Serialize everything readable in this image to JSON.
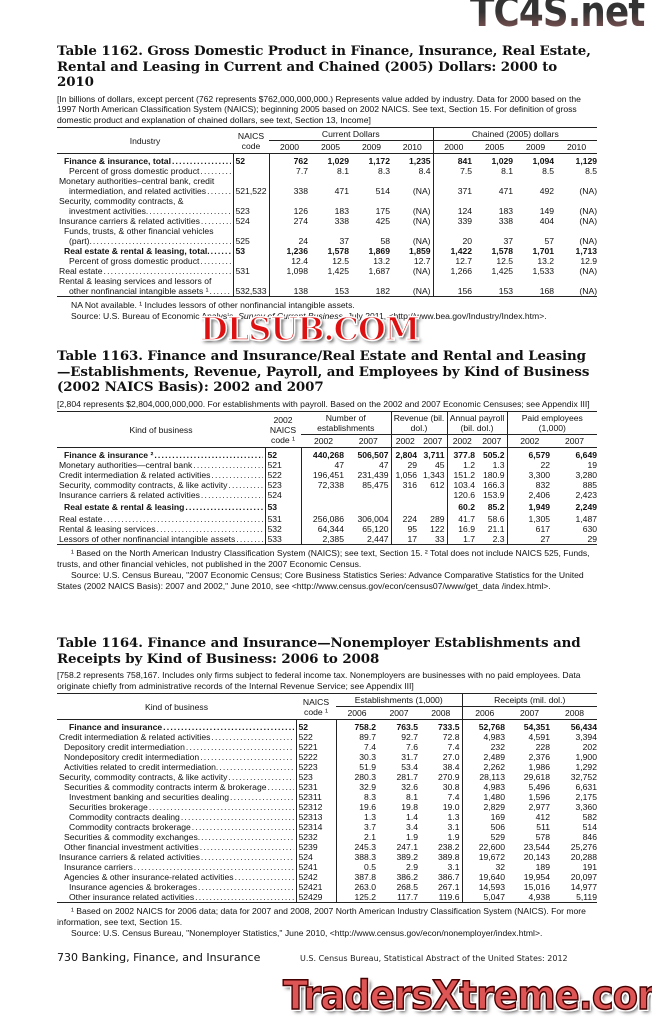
{
  "t1162": {
    "title": "Table 1162. Gross Domestic Product in Finance, Insurance, Real Estate, Rental and Leasing in Current and Chained (2005) Dollars: 2000 to 2010",
    "note": "[In billions of dollars, except percent (762 represents $762,000,000,000.) Represents value added by industry. Data for 2000 based on the 1997 North American Classification System (NAICS); beginning 2005 based on 2002 NAICS. See text, Section 15. For definition of gross domestic product and explanation of chained dollars, see text, Section 13, Income]",
    "h_industry": "Industry",
    "h_code": "NAICS code",
    "h_group1": "Current Dollars",
    "h_group2": "Chained (2005) dollars",
    "years": [
      "2000",
      "2005",
      "2009",
      "2010",
      "2000",
      "2005",
      "2009",
      "2010"
    ],
    "rows": [
      {
        "label": "Finance & insurance, total",
        "code": "52",
        "v": [
          "762",
          "1,029",
          "1,172",
          "1,235",
          "841",
          "1,029",
          "1,094",
          "1,129"
        ],
        "b": true,
        "ind": 1
      },
      {
        "label": "Percent of gross domestic product",
        "code": "",
        "v": [
          "7.7",
          "8.1",
          "8.3",
          "8.4",
          "7.5",
          "8.1",
          "8.5",
          "8.5"
        ],
        "ind": 2
      },
      {
        "label": "Monetary authorities–central bank, credit",
        "code": "",
        "v": [],
        "nolead": true
      },
      {
        "label": "intermediation, and related activities",
        "code": "521,522",
        "v": [
          "338",
          "471",
          "514",
          "(NA)",
          "371",
          "471",
          "492",
          "(NA)"
        ],
        "ind": 2
      },
      {
        "label": "Security, commodity contracts, &",
        "code": "",
        "v": [],
        "nolead": true
      },
      {
        "label": "investment activities.",
        "code": "523",
        "v": [
          "126",
          "183",
          "175",
          "(NA)",
          "124",
          "183",
          "149",
          "(NA)"
        ],
        "ind": 2
      },
      {
        "label": "Insurance carriers & related activities",
        "code": "524",
        "v": [
          "274",
          "338",
          "425",
          "(NA)",
          "339",
          "338",
          "404",
          "(NA)"
        ]
      },
      {
        "label": "Funds, trusts, & other financial vehicles",
        "code": "",
        "v": [],
        "nolead": true,
        "ind": 1
      },
      {
        "label": "(part).",
        "code": "525",
        "v": [
          "24",
          "37",
          "58",
          "(NA)",
          "20",
          "37",
          "57",
          "(NA)"
        ],
        "ind": 2
      },
      {
        "label": "Real estate & rental & leasing, total.",
        "code": "53",
        "v": [
          "1,236",
          "1,578",
          "1,869",
          "1,859",
          "1,422",
          "1,578",
          "1,701",
          "1,713"
        ],
        "b": true,
        "ind": 1
      },
      {
        "label": "Percent of gross domestic product",
        "code": "",
        "v": [
          "12.4",
          "12.5",
          "13.2",
          "12.7",
          "12.7",
          "12.5",
          "13.2",
          "12.9"
        ],
        "ind": 2
      },
      {
        "label": "Real estate",
        "code": "531",
        "v": [
          "1,098",
          "1,425",
          "1,687",
          "(NA)",
          "1,266",
          "1,425",
          "1,533",
          "(NA)"
        ]
      },
      {
        "label": "Rental & leasing services and lessors of",
        "code": "",
        "v": [],
        "nolead": true
      },
      {
        "label": "other nonfinancial intangible assets ¹",
        "code": "532,533",
        "v": [
          "138",
          "153",
          "182",
          "(NA)",
          "156",
          "153",
          "168",
          "(NA)"
        ],
        "ind": 2
      }
    ],
    "fn1": "NA Not available. ¹ Includes lessors of other nonfinancial intangible assets.",
    "src_a": "Source: U.S. Bureau of Economic Analysis, ",
    "src_i": "Survey of Current Business",
    "src_b": ", July 2011, <http://www.bea.gov/Industry/Index.htm>."
  },
  "t1163": {
    "title": "Table 1163. Finance and Insurance/Real Estate and Rental and Leasing—Establishments, Revenue, Payroll, and Employees by Kind of Business (2002 NAICS Basis): 2002 and 2007",
    "note": "[2,804 represents $2,804,000,000,000. For establishments with payroll. Based on the 2002 and 2007 Economic Censuses; see Appendix III]",
    "h_kind": "Kind of business",
    "h_code": "2002 NAICS code ¹",
    "h_g1": "Number of establishments",
    "h_g2": "Revenue (bil. dol.)",
    "h_g3": "Annual payroll (bil. dol.)",
    "h_g4": "Paid employees (1,000)",
    "years": [
      "2002",
      "2007",
      "2002",
      "2007",
      "2002",
      "2007",
      "2002",
      "2007"
    ],
    "rows": [
      {
        "label": "Finance & insurance ²",
        "code": "52",
        "v": [
          "440,268",
          "506,507",
          "2,804",
          "3,711",
          "377.8",
          "505.2",
          "6,579",
          "6,649"
        ],
        "b": true,
        "ind": 1
      },
      {
        "label": "Monetary authorities—central bank",
        "code": "521",
        "v": [
          "47",
          "47",
          "29",
          "45",
          "1.2",
          "1.3",
          "22",
          "19"
        ]
      },
      {
        "label": "Credit intermediation & related activities",
        "code": "522",
        "v": [
          "196,451",
          "231,439",
          "1,056",
          "1,343",
          "151.2",
          "180.9",
          "3,300",
          "3,280"
        ]
      },
      {
        "label": "Security, commodity contracts, & like activity",
        "code": "523",
        "v": [
          "72,338",
          "85,475",
          "316",
          "612",
          "103.4",
          "166.3",
          "832",
          "885"
        ]
      },
      {
        "label": "Insurance carriers & related activities",
        "code": "524",
        "v": [
          "",
          "",
          "",
          "",
          "120.6",
          "153.9",
          "2,406",
          "2,423"
        ]
      },
      {
        "label": "Real estate & rental & leasing",
        "code": "53",
        "v": [
          "",
          "",
          "",
          "",
          "60.2",
          "85.2",
          "1,949",
          "2,249"
        ],
        "b": true,
        "ind": 1,
        "gap": true
      },
      {
        "label": "Real estate",
        "code": "531",
        "v": [
          "256,086",
          "306,004",
          "224",
          "289",
          "41.7",
          "58.6",
          "1,305",
          "1,487"
        ]
      },
      {
        "label": "Rental & leasing services",
        "code": "532",
        "v": [
          "64,344",
          "65,120",
          "95",
          "122",
          "16.9",
          "21.1",
          "617",
          "630"
        ]
      },
      {
        "label": "Lessors of other nonfinancial intangible assets",
        "code": "533",
        "v": [
          "2,385",
          "2,447",
          "17",
          "33",
          "1.7",
          "2.3",
          "27",
          "29"
        ]
      }
    ],
    "fn1": "¹ Based on the North American Industry Classification System (NAICS); see text, Section 15. ² Total does not include NAICS 525, Funds, trusts, and other financial vehicles, not published in the 2007 Economic Census.",
    "src": "Source: U.S. Census Bureau, \"2007 Economic Census; Core Business Statistics Series: Advance Comparative Statistics for the United States (2002 NAICS Basis): 2007 and 2002,\" June 2010, see <http://www.census.gov/econ/census07/www/get_data /index.html>."
  },
  "t1164": {
    "title": "Table 1164. Finance and Insurance—Nonemployer Establishments and Receipts by Kind of Business: 2006 to 2008",
    "note": "[758.2 represents 758,167. Includes only firms subject to federal income tax. Nonemployers are businesses with no paid employees. Data originate chiefly from administrative records of the Internal Revenue Service; see Appendix III]",
    "h_kind": "Kind of business",
    "h_code": "NAICS code ¹",
    "h_g1": "Establishments (1,000)",
    "h_g2": "Receipts (mil. dol.)",
    "years": [
      "2006",
      "2007",
      "2008",
      "2006",
      "2007",
      "2008"
    ],
    "rows": [
      {
        "label": "Finance and insurance",
        "code": "52",
        "v": [
          "758.2",
          "763.5",
          "733.5",
          "52,768",
          "54,351",
          "56,434"
        ],
        "b": true,
        "ind": 2
      },
      {
        "label": "Credit intermediation & related activities",
        "code": "522",
        "v": [
          "89.7",
          "92.7",
          "72.8",
          "4,983",
          "4,591",
          "3,394"
        ]
      },
      {
        "label": "Depository credit intermediation",
        "code": "5221",
        "v": [
          "7.4",
          "7.6",
          "7.4",
          "232",
          "228",
          "202"
        ],
        "ind": 1
      },
      {
        "label": "Nondepository credit intermediation",
        "code": "5222",
        "v": [
          "30.3",
          "31.7",
          "27.0",
          "2,489",
          "2,376",
          "1,900"
        ],
        "ind": 1
      },
      {
        "label": "Activities related to credit intermediation.",
        "code": "5223",
        "v": [
          "51.9",
          "53.4",
          "38.4",
          "2,262",
          "1,986",
          "1,292"
        ],
        "ind": 1
      },
      {
        "label": "Security, commodity contracts, & like activity",
        "code": "523",
        "v": [
          "280.3",
          "281.7",
          "270.9",
          "28,113",
          "29,618",
          "32,752"
        ]
      },
      {
        "label": "Securities & commodity contracts interm & brokerage",
        "code": "5231",
        "v": [
          "32.9",
          "32.6",
          "30.8",
          "4,983",
          "5,496",
          "6,631"
        ],
        "ind": 1
      },
      {
        "label": "Investment banking and securities dealing",
        "code": "52311",
        "v": [
          "8.3",
          "8.1",
          "7.4",
          "1,480",
          "1,596",
          "2,175"
        ],
        "ind": 2
      },
      {
        "label": "Securities brokerage",
        "code": "52312",
        "v": [
          "19.6",
          "19.8",
          "19.0",
          "2,829",
          "2,977",
          "3,360"
        ],
        "ind": 2
      },
      {
        "label": "Commodity contracts dealing",
        "code": "52313",
        "v": [
          "1.3",
          "1.4",
          "1.3",
          "169",
          "412",
          "582"
        ],
        "ind": 2
      },
      {
        "label": "Commodity contracts brokerage",
        "code": "52314",
        "v": [
          "3.7",
          "3.4",
          "3.1",
          "506",
          "511",
          "514"
        ],
        "ind": 2
      },
      {
        "label": "Securities & commodity exchanges.",
        "code": "5232",
        "v": [
          "2.1",
          "1.9",
          "1.9",
          "529",
          "578",
          "846"
        ],
        "ind": 1
      },
      {
        "label": "Other financial investment activities",
        "code": "5239",
        "v": [
          "245.3",
          "247.1",
          "238.2",
          "22,600",
          "23,544",
          "25,276"
        ],
        "ind": 1
      },
      {
        "label": "Insurance carriers & related activities",
        "code": "524",
        "v": [
          "388.3",
          "389.2",
          "389.8",
          "19,672",
          "20,143",
          "20,288"
        ]
      },
      {
        "label": "Insurance carriers",
        "code": "5241",
        "v": [
          "0.5",
          "2.9",
          "3.1",
          "32",
          "189",
          "191"
        ],
        "ind": 1
      },
      {
        "label": "Agencies & other insurance-related activities",
        "code": "5242",
        "v": [
          "387.8",
          "386.2",
          "386.7",
          "19,640",
          "19,954",
          "20,097"
        ],
        "ind": 1
      },
      {
        "label": "Insurance agencies & brokerages",
        "code": "52421",
        "v": [
          "263.0",
          "268.5",
          "267.1",
          "14,593",
          "15,016",
          "14,977"
        ],
        "ind": 2
      },
      {
        "label": "Other insurance related activities",
        "code": "52429",
        "v": [
          "125.2",
          "117.7",
          "119.6",
          "5,047",
          "4,938",
          "5,119"
        ],
        "ind": 2
      }
    ],
    "fn1": "¹ Based on 2002 NAICS for 2006 data; data for 2007 and 2008, 2007 North American Industry Classification System (NAICS). For more information, see text, Section 15.",
    "src": "Source: U.S. Census Bureau, \"Nonemployer Statistics,\" June 2010, <http://www.census.gov/econ/nonemployer/index.html>."
  },
  "footer": {
    "page": "730  Banking, Finance, and Insurance",
    "source": "U.S. Census Bureau, Statistical Abstract of the United States: 2012"
  },
  "watermarks": {
    "top": "TC4S.net",
    "middle": "DLSUB.COM",
    "bottom": "TradersXtreme.com"
  }
}
